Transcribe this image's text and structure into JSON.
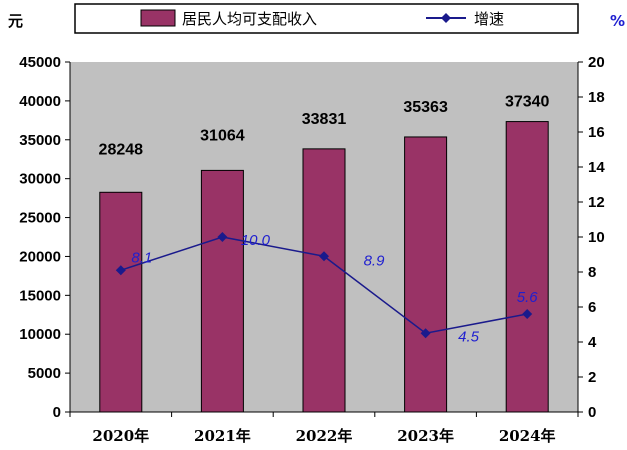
{
  "chart_data": {
    "type": "bar",
    "categories": [
      "2020年",
      "2021年",
      "2022年",
      "2023年",
      "2024年"
    ],
    "series": [
      {
        "name": "居民人均可支配收入",
        "type": "bar",
        "axis": "left",
        "values": [
          28248,
          31064,
          33831,
          35363,
          37340
        ],
        "labels": [
          "28248",
          "31064",
          "33831",
          "35363",
          "37340"
        ],
        "color": "#993366"
      },
      {
        "name": "增速",
        "type": "line",
        "axis": "right",
        "values": [
          8.1,
          10.0,
          8.9,
          4.5,
          5.6
        ],
        "labels": [
          "8.1",
          "10.0",
          "8.9",
          "4.5",
          "5.6"
        ],
        "color": "#1a1a8c"
      }
    ],
    "y_left": {
      "unit": "元",
      "ylim": [
        0,
        45000
      ],
      "ticks": [
        "0",
        "5000",
        "10000",
        "15000",
        "20000",
        "25000",
        "30000",
        "35000",
        "40000",
        "45000"
      ]
    },
    "y_right": {
      "unit": "%",
      "ylim": [
        0,
        20
      ],
      "ticks": [
        "0",
        "2",
        "4",
        "6",
        "8",
        "10",
        "12",
        "14",
        "16",
        "18",
        "20"
      ]
    },
    "plot_background": "#c0c0c0",
    "bar_label_color": "#000000",
    "line_label_color": "#1f1fd0",
    "unit_left_color": "#000000",
    "unit_right_color": "#1f1fd0",
    "legend": "top",
    "grid": false
  }
}
